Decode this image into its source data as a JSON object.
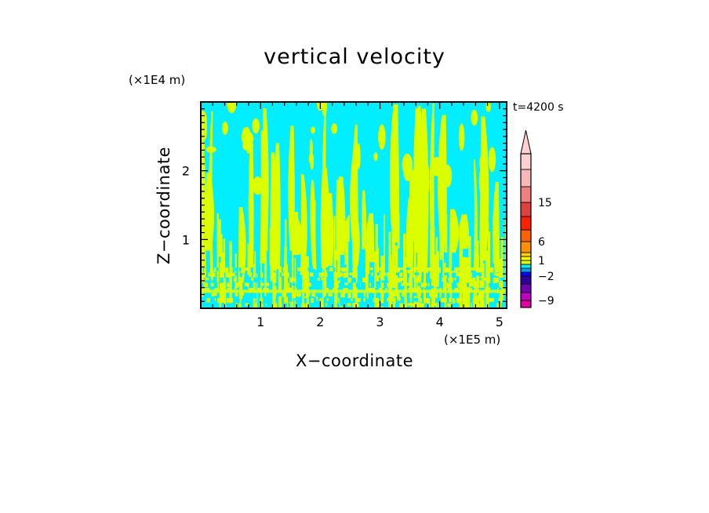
{
  "chart_data": {
    "type": "heatmap",
    "title": "vertical velocity",
    "xlabel": "X−coordinate",
    "ylabel": "Z−coordinate",
    "x_multiplier": "(×1E5 m)",
    "y_multiplier": "(×1E4 m)",
    "time_label": "t=4200 s",
    "xlim": [
      0,
      5.12
    ],
    "ylim": [
      0,
      3.0
    ],
    "x_ticks": [
      1,
      2,
      3,
      4,
      5
    ],
    "y_ticks": [
      1,
      2
    ],
    "x_tick_labels": [
      "1",
      "2",
      "3",
      "4",
      "5"
    ],
    "y_tick_labels": [
      "1",
      "2"
    ],
    "field_colors": {
      "background": "#00eeff",
      "updraft": "#dcff00"
    },
    "colorbar": {
      "levels": [
        {
          "color": "#e000a0"
        },
        {
          "color": "#c000c0"
        },
        {
          "color": "#7000b0"
        },
        {
          "color": "#3000a0"
        },
        {
          "color": "#0000ff"
        },
        {
          "color": "#00a0ff"
        },
        {
          "color": "#00eeff"
        },
        {
          "color": "#dcff00"
        },
        {
          "color": "#ffff00"
        },
        {
          "color": "#ffd000"
        },
        {
          "color": "#ff9000"
        },
        {
          "color": "#ff6000"
        },
        {
          "color": "#ff2000"
        },
        {
          "color": "#e04040"
        },
        {
          "color": "#f08080"
        },
        {
          "color": "#f8b8b8"
        },
        {
          "color": "#ffd0d0"
        }
      ],
      "tick_labels": [
        "−9",
        "−2",
        "1",
        "6",
        "15"
      ],
      "tick_values": [
        -9,
        -2,
        1,
        6,
        15
      ]
    }
  }
}
